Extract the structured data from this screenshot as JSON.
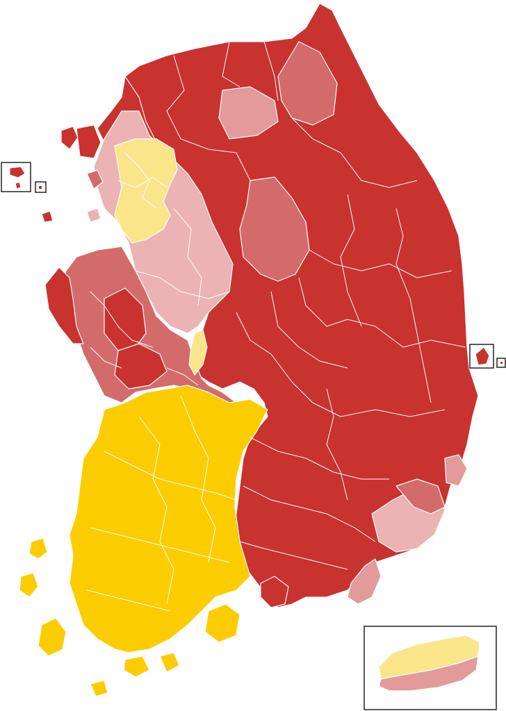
{
  "map": {
    "legend_colors": {
      "dark_red": "#c8322f",
      "medium_red": "#d46b6b",
      "light_red": "#e29a9a",
      "pale_pink": "#ebb3b3",
      "pale_yellow": "#fbe58a",
      "gold": "#fbcd00"
    },
    "regions": [
      {
        "name": "gangwon-gyeongbuk-east",
        "color_key": "dark_red"
      },
      {
        "name": "gyeonggi-north",
        "color_key": "dark_red"
      },
      {
        "name": "gyeonggi-south",
        "color_key": "light_red"
      },
      {
        "name": "seoul",
        "color_key": "pale_yellow"
      },
      {
        "name": "chungcheong",
        "color_key": "medium_red"
      },
      {
        "name": "chungbuk-central",
        "color_key": "pale_pink"
      },
      {
        "name": "daejeon-sejong",
        "color_key": "pale_yellow"
      },
      {
        "name": "jeolla",
        "color_key": "gold"
      },
      {
        "name": "gyeongnam-busan",
        "color_key": "dark_red"
      },
      {
        "name": "busan-coast",
        "color_key": "pale_pink"
      },
      {
        "name": "jeju-north",
        "color_key": "pale_yellow"
      },
      {
        "name": "jeju-south",
        "color_key": "light_red"
      }
    ],
    "insets": [
      "west-sea-islands-inset",
      "ulleungdo-inset",
      "jeju-inset"
    ]
  }
}
